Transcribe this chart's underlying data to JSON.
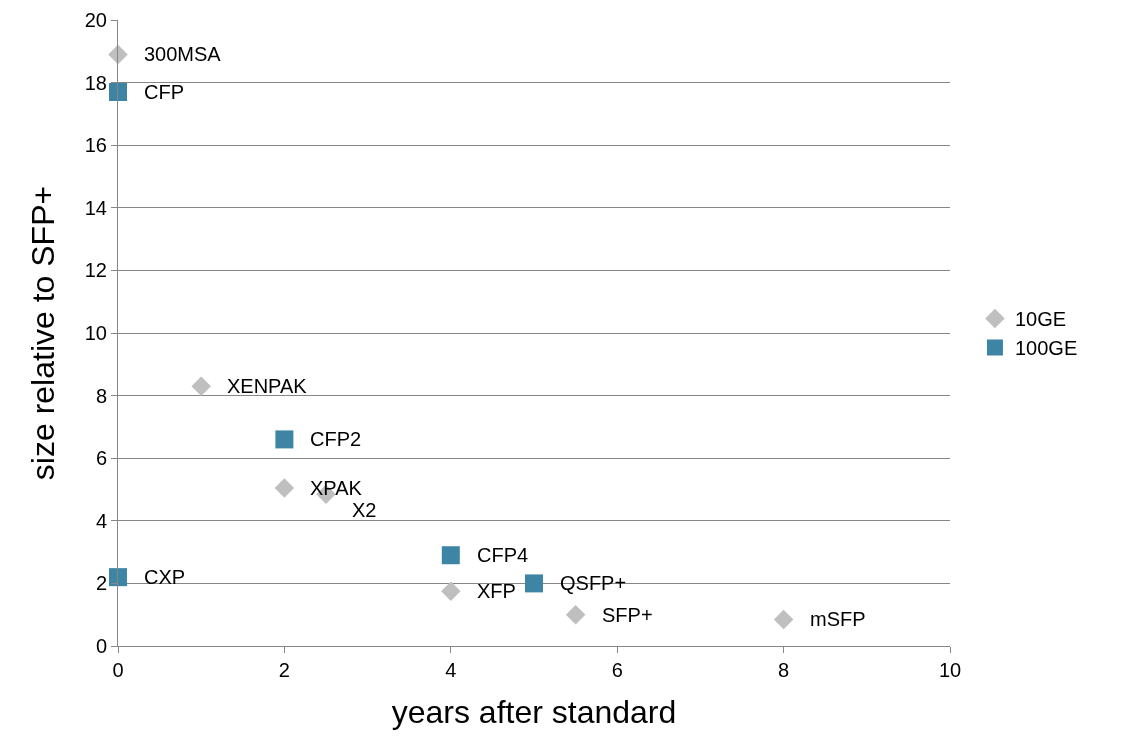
{
  "chart_data": {
    "type": "scatter",
    "xlabel": "years after standard",
    "ylabel": "size relative to SFP+",
    "xlim": [
      0,
      10
    ],
    "xticks": [
      0,
      2,
      4,
      6,
      8,
      10
    ],
    "ylim": [
      0,
      20
    ],
    "yticks": [
      0,
      2,
      4,
      6,
      8,
      10,
      12,
      14,
      16,
      18,
      20
    ],
    "grid": "y",
    "legend": "right",
    "series": [
      {
        "name": "10GE",
        "color": "#bfbfbf",
        "marker": "diamond",
        "x": [
          0,
          1,
          2,
          2.5,
          4,
          5.5,
          8
        ],
        "values": [
          18.9,
          8.3,
          5.05,
          4.85,
          1.75,
          1.0,
          0.85
        ]
      },
      {
        "name": "100GE",
        "color": "#3e85a5",
        "marker": "square",
        "x": [
          0,
          2,
          0,
          4,
          5
        ],
        "values": [
          17.7,
          6.6,
          2.2,
          2.9,
          2.0
        ]
      }
    ],
    "annotations": [
      {
        "text": "300MSA",
        "x": 0,
        "y": 18.9
      },
      {
        "text": "XENPAK",
        "x": 1,
        "y": 8.3
      },
      {
        "text": "XPAK",
        "x": 2,
        "y": 5.05
      },
      {
        "text": "X2",
        "x": 2.5,
        "y": 4.85
      },
      {
        "text": "XFP",
        "x": 4,
        "y": 1.75
      },
      {
        "text": "SFP+",
        "x": 5.5,
        "y": 1.0
      },
      {
        "text": "mSFP",
        "x": 8,
        "y": 0.85
      },
      {
        "text": "CFP",
        "x": 0,
        "y": 17.7
      },
      {
        "text": "CFP2",
        "x": 2,
        "y": 6.6
      },
      {
        "text": "CXP",
        "x": 0,
        "y": 2.2
      },
      {
        "text": "CFP4",
        "x": 4,
        "y": 2.9
      },
      {
        "text": "QSFP+",
        "x": 5,
        "y": 2.0
      }
    ]
  }
}
